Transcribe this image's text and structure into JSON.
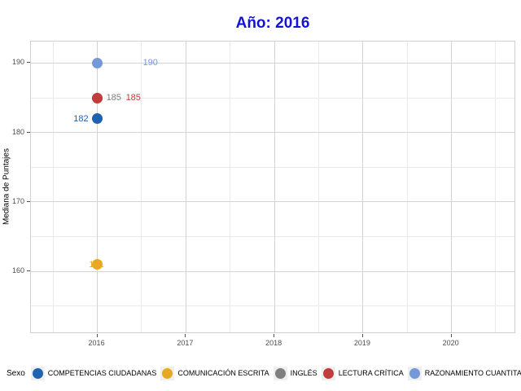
{
  "title": {
    "text": "Año: 2016",
    "color": "#1414d6"
  },
  "axes": {
    "y_title": "Mediana de Puntajes",
    "x_tick_labels": [
      "2016",
      "2017",
      "2018",
      "2019",
      "2020"
    ],
    "y_tick_labels": [
      "160",
      "170",
      "180",
      "190"
    ]
  },
  "legend": {
    "title": "Sexo",
    "position": "bottom"
  },
  "palette": {
    "grid_major": "#d3d3d3",
    "grid_minor": "#eaeaea",
    "panel_border": "#cfcfcf",
    "tick_text": "#4d4d4d"
  },
  "chart_data": {
    "type": "scatter",
    "title": "Año: 2016",
    "xlabel": "",
    "ylabel": "Mediana de Puntajes",
    "legend_title": "Sexo",
    "legend_position": "bottom",
    "grid": true,
    "xlim": [
      2015.25,
      2020.73
    ],
    "ylim": [
      151.0,
      193.1
    ],
    "x_major_ticks": [
      2016,
      2017,
      2018,
      2019,
      2020
    ],
    "y_major_ticks": [
      160,
      170,
      180,
      190
    ],
    "x_minor_ticks": [
      2015.5,
      2016.5,
      2017.5,
      2018.5,
      2019.5,
      2020.5
    ],
    "y_minor_ticks": [
      155,
      165,
      175,
      185
    ],
    "series": [
      {
        "name": "COMPETENCIAS CIUDADANAS",
        "color": "#1f63b0",
        "points": [
          {
            "x": 2016,
            "y": 182
          }
        ],
        "value_label": "182",
        "label_anchor": "end",
        "label_dx": -11,
        "label_layer": "above"
      },
      {
        "name": "COMUNICACIÓN ESCRITA",
        "color": "#e7a920",
        "points": [
          {
            "x": 2016,
            "y": 161
          }
        ],
        "value_label": "161",
        "label_anchor": "end",
        "label_dx": 8,
        "label_layer": "below"
      },
      {
        "name": "INGLÉS",
        "color": "#7f7f7f",
        "points": [
          {
            "x": 2016,
            "y": 185
          }
        ],
        "value_label": "185",
        "label_anchor": "start",
        "label_dx": 11,
        "label_layer": "above"
      },
      {
        "name": "LECTURA CRÍTICA",
        "color": "#c23c3c",
        "points": [
          {
            "x": 2016,
            "y": 185
          }
        ],
        "value_label": "185",
        "label_anchor": "start",
        "label_dx": 35,
        "label_layer": "above"
      },
      {
        "name": "RAZONAMIENTO CUANTITATIVO",
        "color": "#7598d8",
        "points": [
          {
            "x": 2016,
            "y": 190
          }
        ],
        "value_label": "190",
        "label_anchor": "start",
        "label_dx": 56,
        "label_layer": "above"
      }
    ]
  }
}
